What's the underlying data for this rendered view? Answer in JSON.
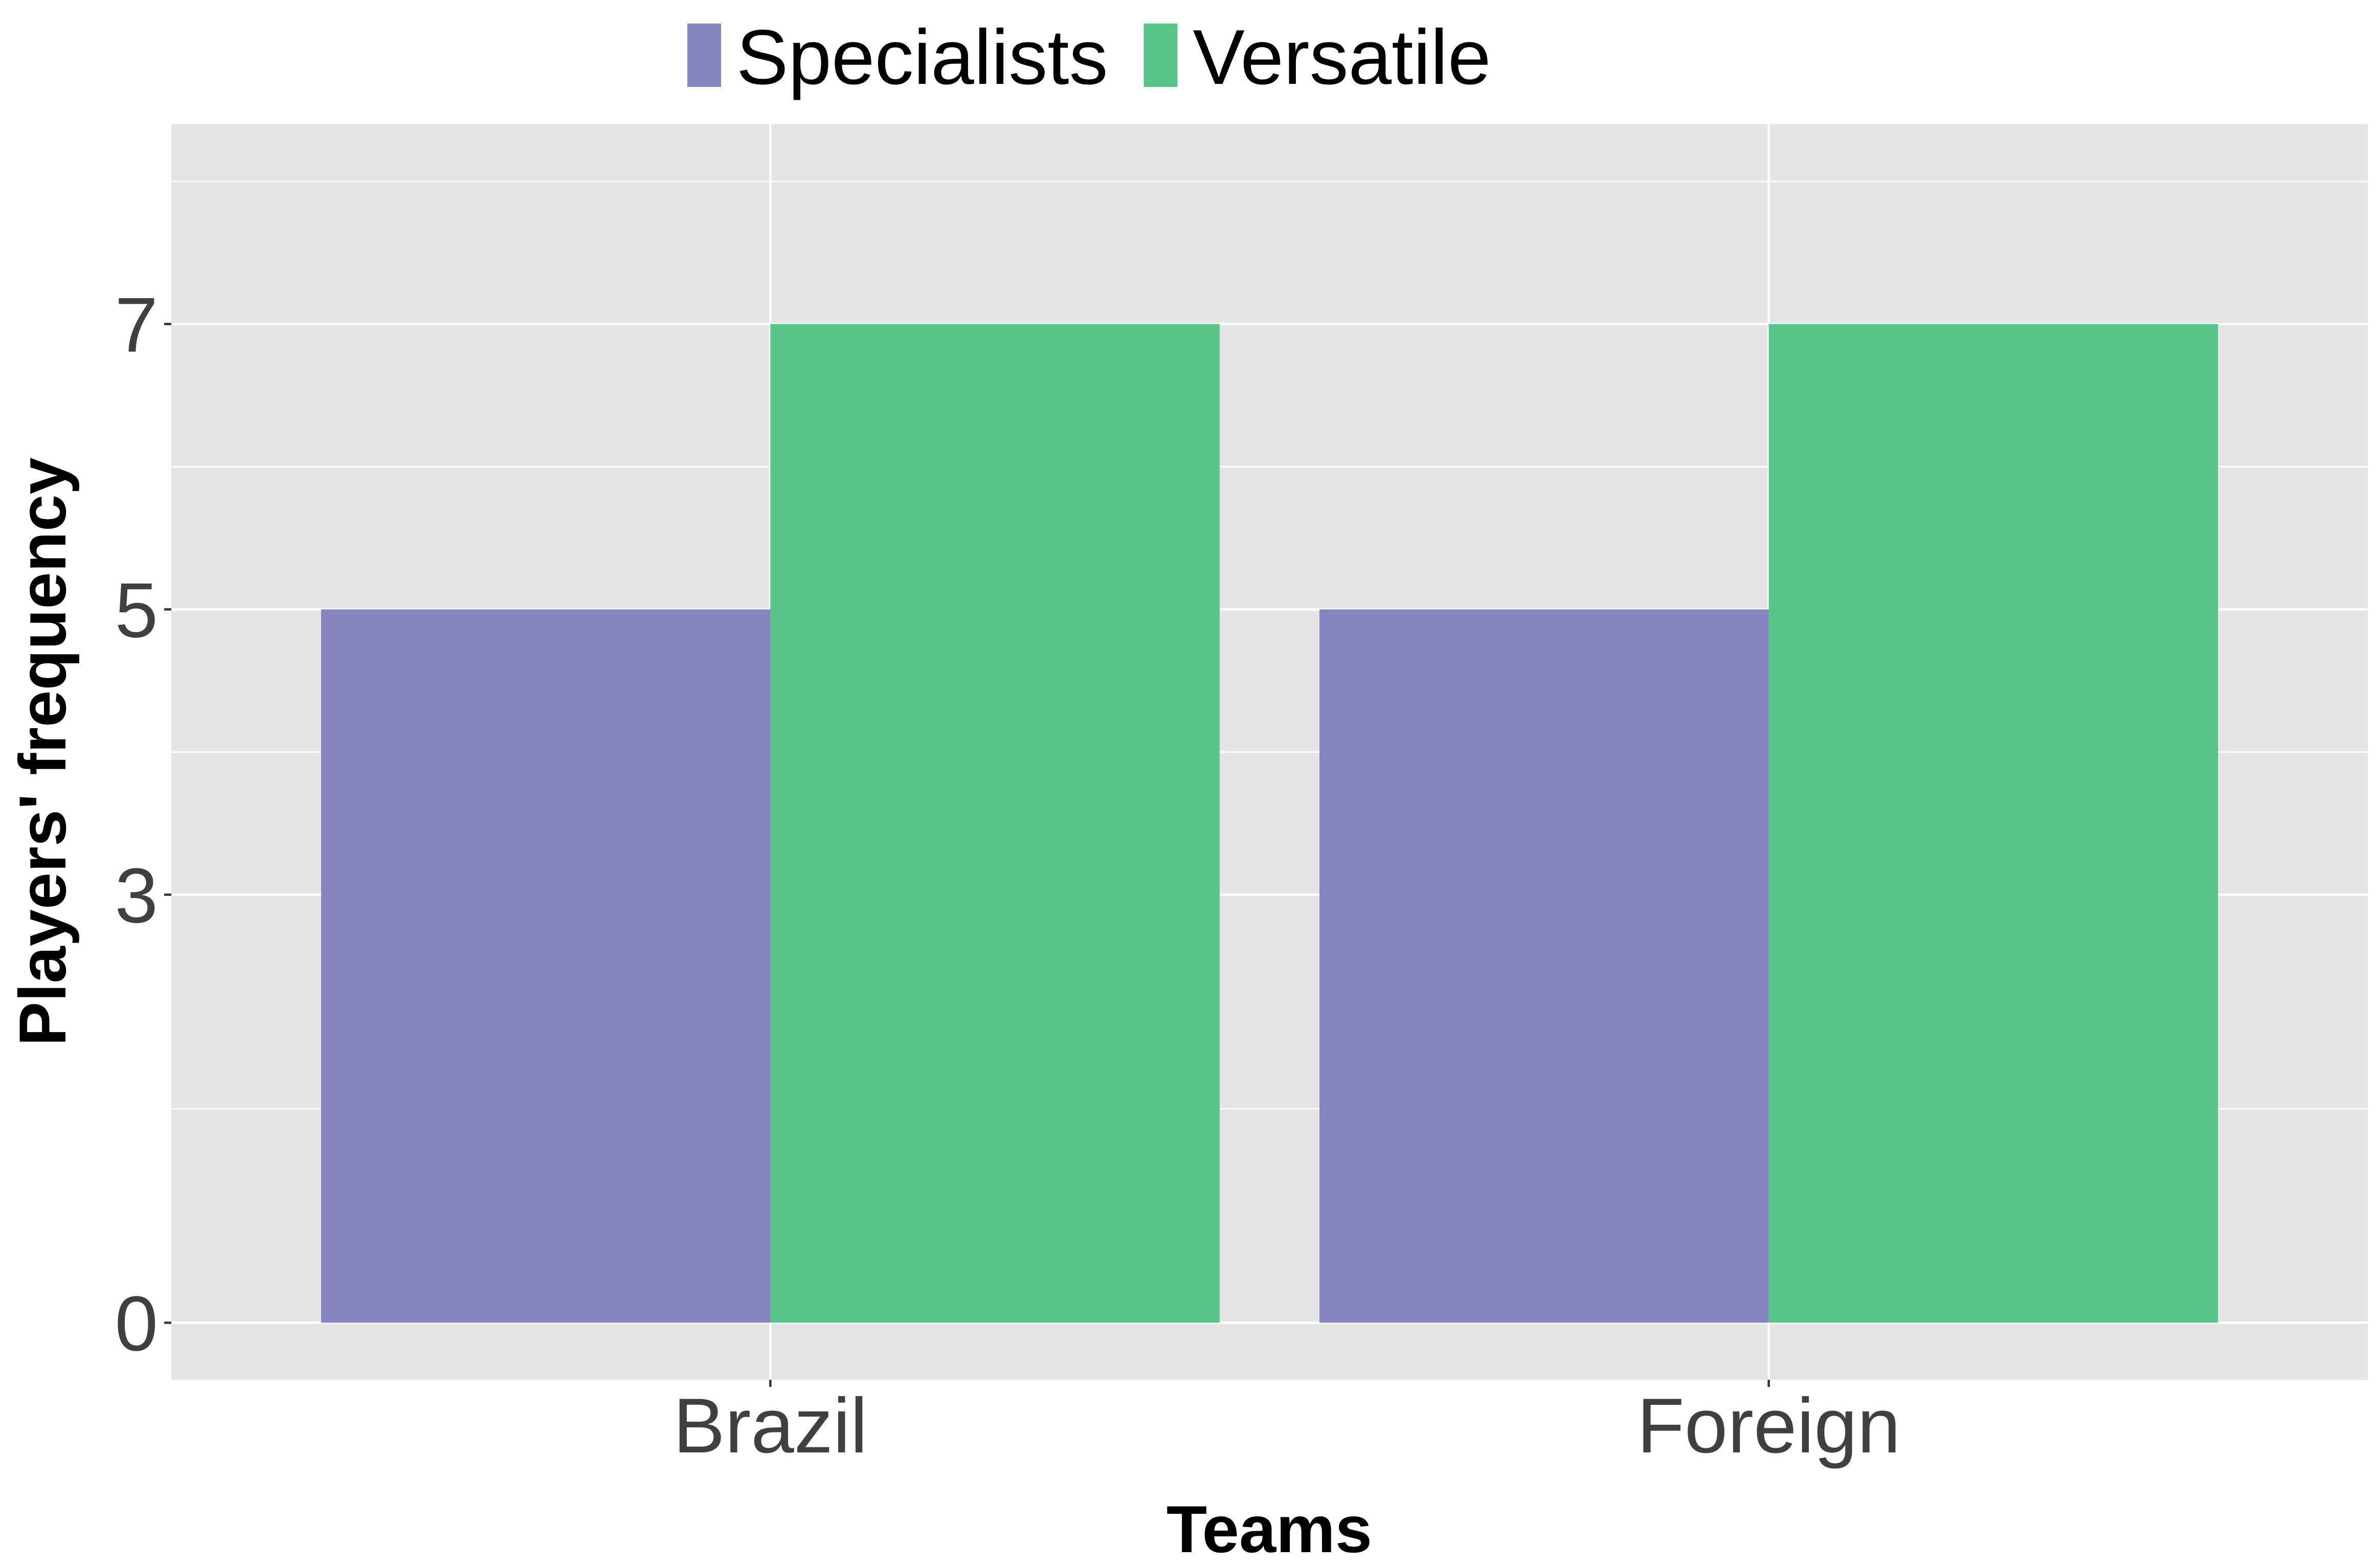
{
  "chart_data": {
    "type": "bar",
    "title": "",
    "xlabel": "Teams",
    "ylabel": "Players' frequency",
    "categories": [
      "Brazil",
      "Foreign"
    ],
    "series": [
      {
        "name": "Specialists",
        "values": [
          5,
          5
        ],
        "color": "#8785C0"
      },
      {
        "name": "Versatile",
        "values": [
          7,
          7
        ],
        "color": "#58C487"
      }
    ],
    "yticks": [
      0,
      3,
      5,
      7
    ],
    "ylim": [
      -0.4,
      8.4
    ],
    "grid": true,
    "legend_position": "top",
    "panel_background": "#E5E5E5",
    "gridline_color": "#FFFFFF"
  }
}
